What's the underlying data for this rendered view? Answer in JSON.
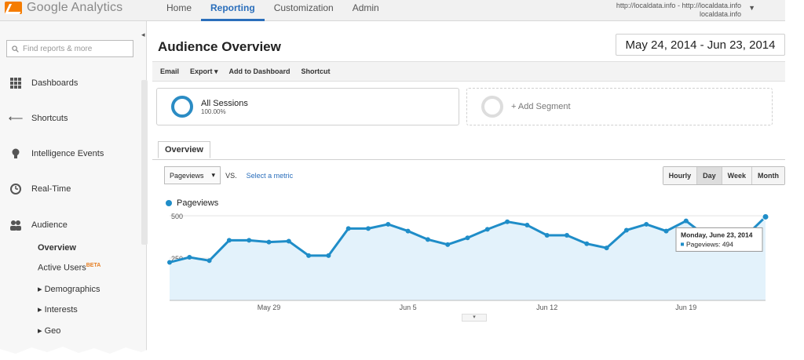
{
  "app": {
    "logo_text": "Google Analytics"
  },
  "topnav": {
    "tabs": [
      "Home",
      "Reporting",
      "Customization",
      "Admin"
    ],
    "active": "Reporting"
  },
  "account": {
    "line1": "http://localdata.info - http://localdata.info",
    "line2": "localdata.info"
  },
  "sidebar": {
    "search_placeholder": "Find reports & more",
    "items": [
      {
        "label": "Dashboards",
        "icon": "grid-icon"
      },
      {
        "label": "Shortcuts",
        "icon": "shortcut-arrow-icon"
      },
      {
        "label": "Intelligence Events",
        "icon": "lightbulb-icon"
      },
      {
        "label": "Real-Time",
        "icon": "clock-icon"
      },
      {
        "label": "Audience",
        "icon": "people-icon"
      }
    ],
    "subitems": [
      {
        "label": "Overview"
      },
      {
        "label": "Active Users",
        "badge": "BETA"
      },
      {
        "label": "Demographics"
      },
      {
        "label": "Interests"
      },
      {
        "label": "Geo"
      }
    ]
  },
  "page": {
    "title": "Audience Overview",
    "date_range": "May 24, 2014 - Jun 23, 2014"
  },
  "toolbar": {
    "items": [
      "Email",
      "Export ▾",
      "Add to Dashboard",
      "Shortcut"
    ]
  },
  "segments": {
    "all_label": "All Sessions",
    "all_pct": "100.00%",
    "add_label": "+ Add Segment"
  },
  "tabs": {
    "overview": "Overview"
  },
  "metric": {
    "selected": "Pageviews",
    "vs": "VS.",
    "select_link": "Select a metric"
  },
  "granularity": {
    "options": [
      "Hourly",
      "Day",
      "Week",
      "Month"
    ],
    "selected": "Day"
  },
  "legend": {
    "series": "Pageviews"
  },
  "tooltip": {
    "date": "Monday, June 23, 2014",
    "label": "Pageviews: 494"
  },
  "chart_data": {
    "type": "area",
    "series": [
      {
        "name": "Pageviews",
        "values": [
          225,
          255,
          235,
          355,
          355,
          345,
          350,
          265,
          265,
          425,
          425,
          450,
          410,
          360,
          330,
          370,
          420,
          465,
          445,
          385,
          385,
          335,
          310,
          415,
          450,
          410,
          470,
          380,
          330,
          380,
          494
        ]
      }
    ],
    "x_ticks": [
      {
        "index": 5,
        "label": "May 29"
      },
      {
        "index": 12,
        "label": "Jun 5"
      },
      {
        "index": 19,
        "label": "Jun 12"
      },
      {
        "index": 26,
        "label": "Jun 19"
      }
    ],
    "y_ticks": [
      500,
      250
    ],
    "ylim": [
      0,
      510
    ],
    "color": "#1f8dc8",
    "fill": "#e3f2fb"
  }
}
